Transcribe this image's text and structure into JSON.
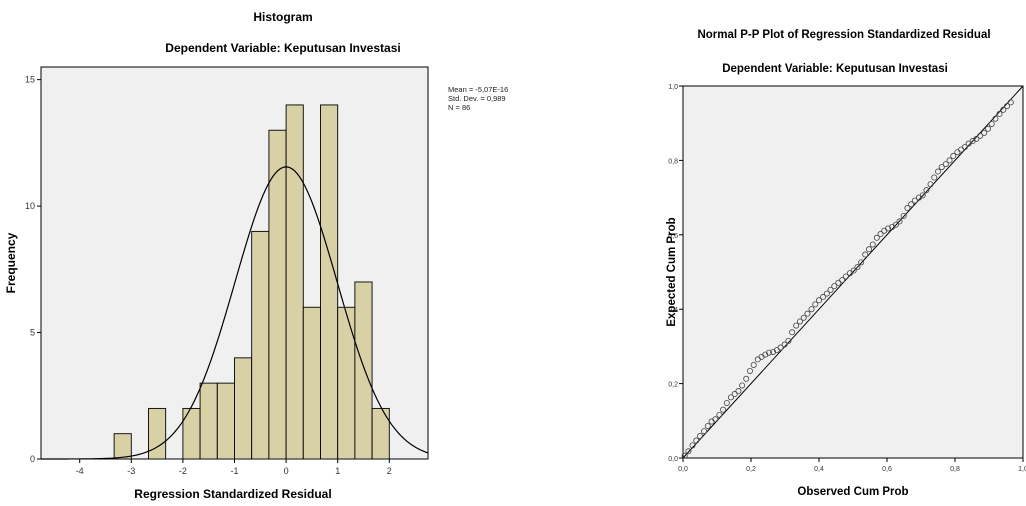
{
  "chart_data": [
    {
      "type": "bar",
      "title": "Histogram",
      "subtitle": "Dependent Variable: Keputusan Investasi",
      "xlabel": "Regression Standardized Residual",
      "ylabel": "Frequency",
      "xlim": [
        -4.75,
        2.75
      ],
      "ylim": [
        0,
        15.5
      ],
      "xticks": [
        -4,
        -3,
        -2,
        -1,
        0,
        1,
        2
      ],
      "yticks": [
        0,
        5,
        10,
        15
      ],
      "bin_width": 0.333,
      "bins": [
        {
          "start": -3.333,
          "count": 1
        },
        {
          "start": -2.667,
          "count": 2
        },
        {
          "start": -2.0,
          "count": 2
        },
        {
          "start": -1.667,
          "count": 3
        },
        {
          "start": -1.333,
          "count": 3
        },
        {
          "start": -1.0,
          "count": 4
        },
        {
          "start": -0.667,
          "count": 9
        },
        {
          "start": -0.333,
          "count": 13
        },
        {
          "start": 0.0,
          "count": 14
        },
        {
          "start": 0.333,
          "count": 6
        },
        {
          "start": 0.667,
          "count": 14
        },
        {
          "start": 1.0,
          "count": 6
        },
        {
          "start": 1.333,
          "count": 7
        },
        {
          "start": 1.667,
          "count": 2
        }
      ],
      "normal_curve": {
        "mean": 0,
        "sd": 0.989,
        "n": 86
      },
      "stats": [
        "Mean = -5,07E-16",
        "Std. Dev. = 0,989",
        "N = 86"
      ],
      "bar_color": "#d8d1a6",
      "bar_stroke": "#000000",
      "background": "#f0f0f0",
      "grid": false
    },
    {
      "type": "scatter",
      "title": "Normal P-P Plot of Regression Standardized Residual",
      "subtitle": "Dependent Variable: Keputusan Investasi",
      "xlabel": "Observed Cum Prob",
      "ylabel": "Expected Cum Prob",
      "xlim": [
        0,
        1
      ],
      "ylim": [
        0,
        1
      ],
      "xticks": [
        "0,0",
        "0,2",
        "0,4",
        "0,6",
        "0,8",
        "1,0"
      ],
      "yticks": [
        "0,0",
        "0,2",
        "0,4",
        "0,6",
        "0,8",
        "1,0"
      ],
      "reference_line": [
        [
          0,
          0
        ],
        [
          1,
          1
        ]
      ],
      "points": [
        [
          0.005,
          0.006
        ],
        [
          0.016,
          0.018
        ],
        [
          0.028,
          0.034
        ],
        [
          0.039,
          0.047
        ],
        [
          0.05,
          0.059
        ],
        [
          0.062,
          0.072
        ],
        [
          0.073,
          0.086
        ],
        [
          0.084,
          0.098
        ],
        [
          0.095,
          0.104
        ],
        [
          0.107,
          0.116
        ],
        [
          0.118,
          0.13
        ],
        [
          0.129,
          0.148
        ],
        [
          0.141,
          0.163
        ],
        [
          0.152,
          0.172
        ],
        [
          0.163,
          0.18
        ],
        [
          0.174,
          0.195
        ],
        [
          0.186,
          0.213
        ],
        [
          0.197,
          0.234
        ],
        [
          0.208,
          0.25
        ],
        [
          0.22,
          0.265
        ],
        [
          0.231,
          0.272
        ],
        [
          0.242,
          0.278
        ],
        [
          0.253,
          0.283
        ],
        [
          0.265,
          0.285
        ],
        [
          0.276,
          0.29
        ],
        [
          0.287,
          0.297
        ],
        [
          0.299,
          0.305
        ],
        [
          0.31,
          0.315
        ],
        [
          0.321,
          0.338
        ],
        [
          0.333,
          0.356
        ],
        [
          0.344,
          0.367
        ],
        [
          0.355,
          0.377
        ],
        [
          0.366,
          0.388
        ],
        [
          0.378,
          0.4
        ],
        [
          0.389,
          0.413
        ],
        [
          0.4,
          0.424
        ],
        [
          0.412,
          0.433
        ],
        [
          0.423,
          0.442
        ],
        [
          0.434,
          0.452
        ],
        [
          0.445,
          0.462
        ],
        [
          0.457,
          0.471
        ],
        [
          0.468,
          0.478
        ],
        [
          0.479,
          0.488
        ],
        [
          0.491,
          0.497
        ],
        [
          0.502,
          0.504
        ],
        [
          0.513,
          0.513
        ],
        [
          0.524,
          0.526
        ],
        [
          0.536,
          0.547
        ],
        [
          0.547,
          0.561
        ],
        [
          0.558,
          0.574
        ],
        [
          0.57,
          0.592
        ],
        [
          0.581,
          0.602
        ],
        [
          0.592,
          0.611
        ],
        [
          0.603,
          0.617
        ],
        [
          0.615,
          0.621
        ],
        [
          0.626,
          0.627
        ],
        [
          0.637,
          0.636
        ],
        [
          0.649,
          0.651
        ],
        [
          0.66,
          0.672
        ],
        [
          0.671,
          0.682
        ],
        [
          0.682,
          0.692
        ],
        [
          0.694,
          0.7
        ],
        [
          0.705,
          0.706
        ],
        [
          0.716,
          0.72
        ],
        [
          0.728,
          0.736
        ],
        [
          0.739,
          0.754
        ],
        [
          0.75,
          0.77
        ],
        [
          0.761,
          0.782
        ],
        [
          0.773,
          0.79
        ],
        [
          0.784,
          0.8
        ],
        [
          0.795,
          0.812
        ],
        [
          0.807,
          0.822
        ],
        [
          0.818,
          0.829
        ],
        [
          0.829,
          0.836
        ],
        [
          0.84,
          0.845
        ],
        [
          0.852,
          0.852
        ],
        [
          0.863,
          0.858
        ],
        [
          0.874,
          0.866
        ],
        [
          0.886,
          0.874
        ],
        [
          0.897,
          0.885
        ],
        [
          0.908,
          0.898
        ],
        [
          0.919,
          0.912
        ],
        [
          0.931,
          0.925
        ],
        [
          0.942,
          0.936
        ],
        [
          0.953,
          0.946
        ],
        [
          0.964,
          0.956
        ]
      ],
      "marker_stroke": "#444444",
      "background": "#f0f0f0",
      "grid": false
    }
  ]
}
